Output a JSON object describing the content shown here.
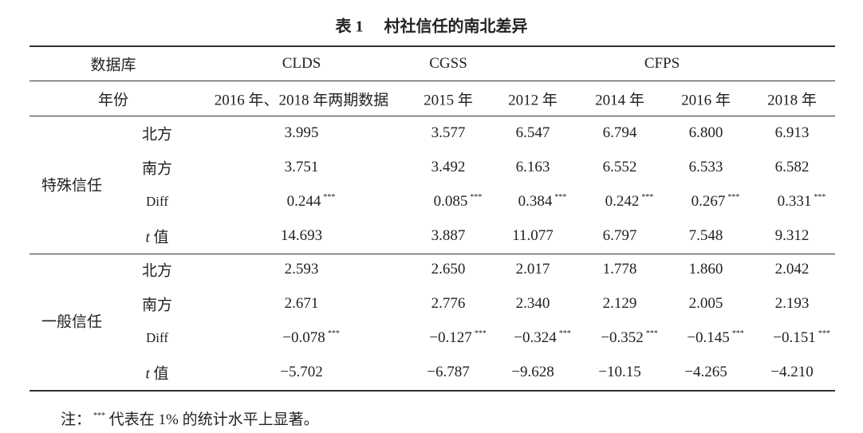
{
  "title": {
    "label": "表 1",
    "text": "村社信任的南北差异"
  },
  "header": {
    "database": {
      "label": "数据库",
      "cols": [
        "CLDS",
        "CGSS",
        "CFPS"
      ]
    },
    "year": {
      "label": "年份",
      "cols": [
        "2016 年、2018 年两期数据",
        "2015 年",
        "2012 年",
        "2014 年",
        "2016 年",
        "2018 年"
      ]
    }
  },
  "groups": [
    {
      "label": "特殊信任",
      "rows": [
        {
          "label": "北方",
          "cells": [
            "3.995",
            "3.577",
            "6.547",
            "6.794",
            "6.800",
            "6.913"
          ]
        },
        {
          "label": "南方",
          "cells": [
            "3.751",
            "3.492",
            "6.163",
            "6.552",
            "6.533",
            "6.582"
          ]
        },
        {
          "label": "Diff",
          "cells": [
            "0.244",
            "0.085",
            "0.384",
            "0.242",
            "0.267",
            "0.331"
          ],
          "sig": [
            "***",
            "***",
            "***",
            "***",
            "***",
            "***"
          ]
        },
        {
          "label_var": "t",
          "label": "值",
          "cells": [
            "14.693",
            "3.887",
            "11.077",
            "6.797",
            "7.548",
            "9.312"
          ]
        }
      ]
    },
    {
      "label": "一般信任",
      "rows": [
        {
          "label": "北方",
          "cells": [
            "2.593",
            "2.650",
            "2.017",
            "1.778",
            "1.860",
            "2.042"
          ]
        },
        {
          "label": "南方",
          "cells": [
            "2.671",
            "2.776",
            "2.340",
            "2.129",
            "2.005",
            "2.193"
          ]
        },
        {
          "label": "Diff",
          "cells": [
            "−0.078",
            "−0.127",
            "−0.324",
            "−0.352",
            "−0.145",
            "−0.151"
          ],
          "sig": [
            "***",
            "***",
            "***",
            "***",
            "***",
            "***"
          ]
        },
        {
          "label_var": "t",
          "label": "值",
          "cells": [
            "−5.702",
            "−6.787",
            "−9.628",
            "−10.15",
            "−4.265",
            "−4.210"
          ]
        }
      ]
    }
  ],
  "note": {
    "prefix": "注：",
    "sig": "***",
    "text": "代表在 1% 的统计水平上显著。"
  }
}
